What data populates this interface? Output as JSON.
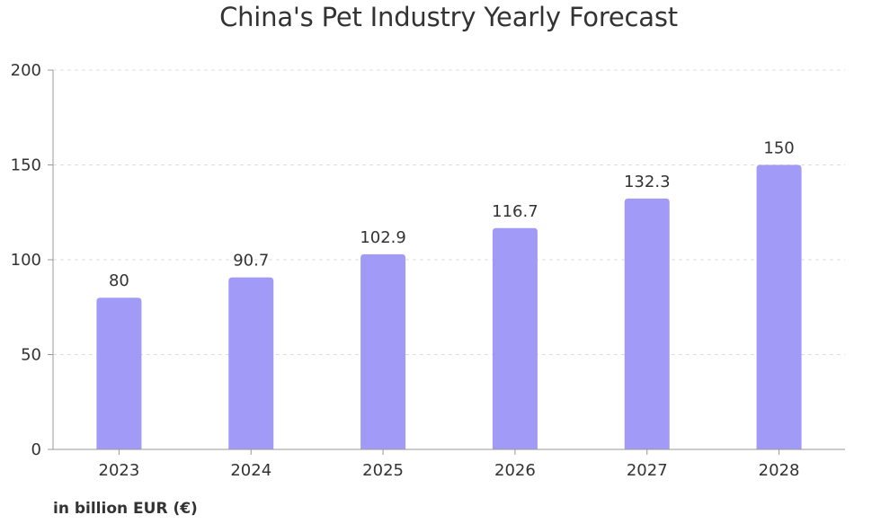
{
  "chart_data": {
    "type": "bar",
    "title": "China's Pet Industry Yearly Forecast",
    "categories": [
      "2023",
      "2024",
      "2025",
      "2026",
      "2027",
      "2028"
    ],
    "values": [
      80,
      90.7,
      102.9,
      116.7,
      132.3,
      150
    ],
    "data_labels": [
      "80",
      "90.7",
      "102.9",
      "116.7",
      "132.3",
      "150"
    ],
    "ylim": [
      0,
      200
    ],
    "yticks": [
      0,
      50,
      100,
      150,
      200
    ],
    "ytick_labels": [
      "0",
      "50",
      "100",
      "150",
      "200"
    ],
    "grid": true,
    "bar_color": "#a19bf7",
    "note": "in billion EUR (€)"
  }
}
